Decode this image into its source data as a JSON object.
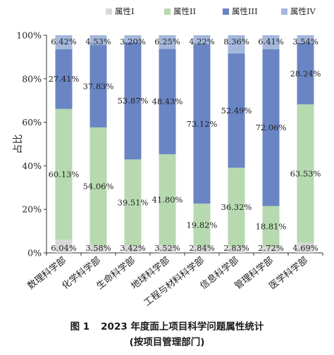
{
  "chart_data": {
    "type": "bar",
    "stacked": true,
    "percent": true,
    "categories": [
      "数理科学部",
      "化学科学部",
      "生命科学部",
      "地球科学部",
      "工程与材料科学部",
      "信息科学部",
      "管理科学部",
      "医学科学部"
    ],
    "series": [
      {
        "name": "属性I",
        "color": "#d9d9d9",
        "values": [
          6.04,
          3.58,
          3.42,
          3.52,
          2.84,
          2.83,
          2.72,
          4.69
        ]
      },
      {
        "name": "属性II",
        "color": "#b7d9b0",
        "values": [
          60.13,
          54.06,
          39.51,
          41.8,
          19.82,
          36.32,
          18.81,
          63.53
        ]
      },
      {
        "name": "属性III",
        "color": "#6a85c4",
        "values": [
          27.41,
          37.83,
          53.87,
          48.43,
          73.12,
          52.49,
          72.06,
          28.24
        ]
      },
      {
        "name": "属性IV",
        "color": "#a4b7dc",
        "values": [
          6.42,
          4.53,
          3.2,
          6.25,
          4.22,
          8.36,
          6.41,
          3.54
        ]
      }
    ],
    "data_labels": [
      [
        "6.04%",
        "3.58%",
        "3.42%",
        "3.52%",
        "2.84%",
        "2.83%",
        "2.72%",
        "4.69%"
      ],
      [
        "60.13%",
        "54.06%",
        "39.51%",
        "41.80%",
        "19.82%",
        "36.32%",
        "18.81%",
        "63.53%"
      ],
      [
        "27.41%",
        "37.83%",
        "53.87%",
        "48.43%",
        "73.12%",
        "52.49%",
        "72.06%",
        "28.24%"
      ],
      [
        "6.42%",
        "4.53%",
        "3.20%",
        "6.25%",
        "4.22%",
        "8.36%",
        "6.41%",
        "3.54%"
      ]
    ],
    "yticks": [
      "0%",
      "20%",
      "40%",
      "60%",
      "80%",
      "100%"
    ],
    "ylabel": "占比",
    "ylim": [
      0,
      100
    ],
    "legend": "top",
    "grid": false
  },
  "caption": {
    "figure_no": "图 1",
    "title": "2023 年度面上项目科学问题属性统计",
    "subtitle": "(按项目管理部门)"
  }
}
